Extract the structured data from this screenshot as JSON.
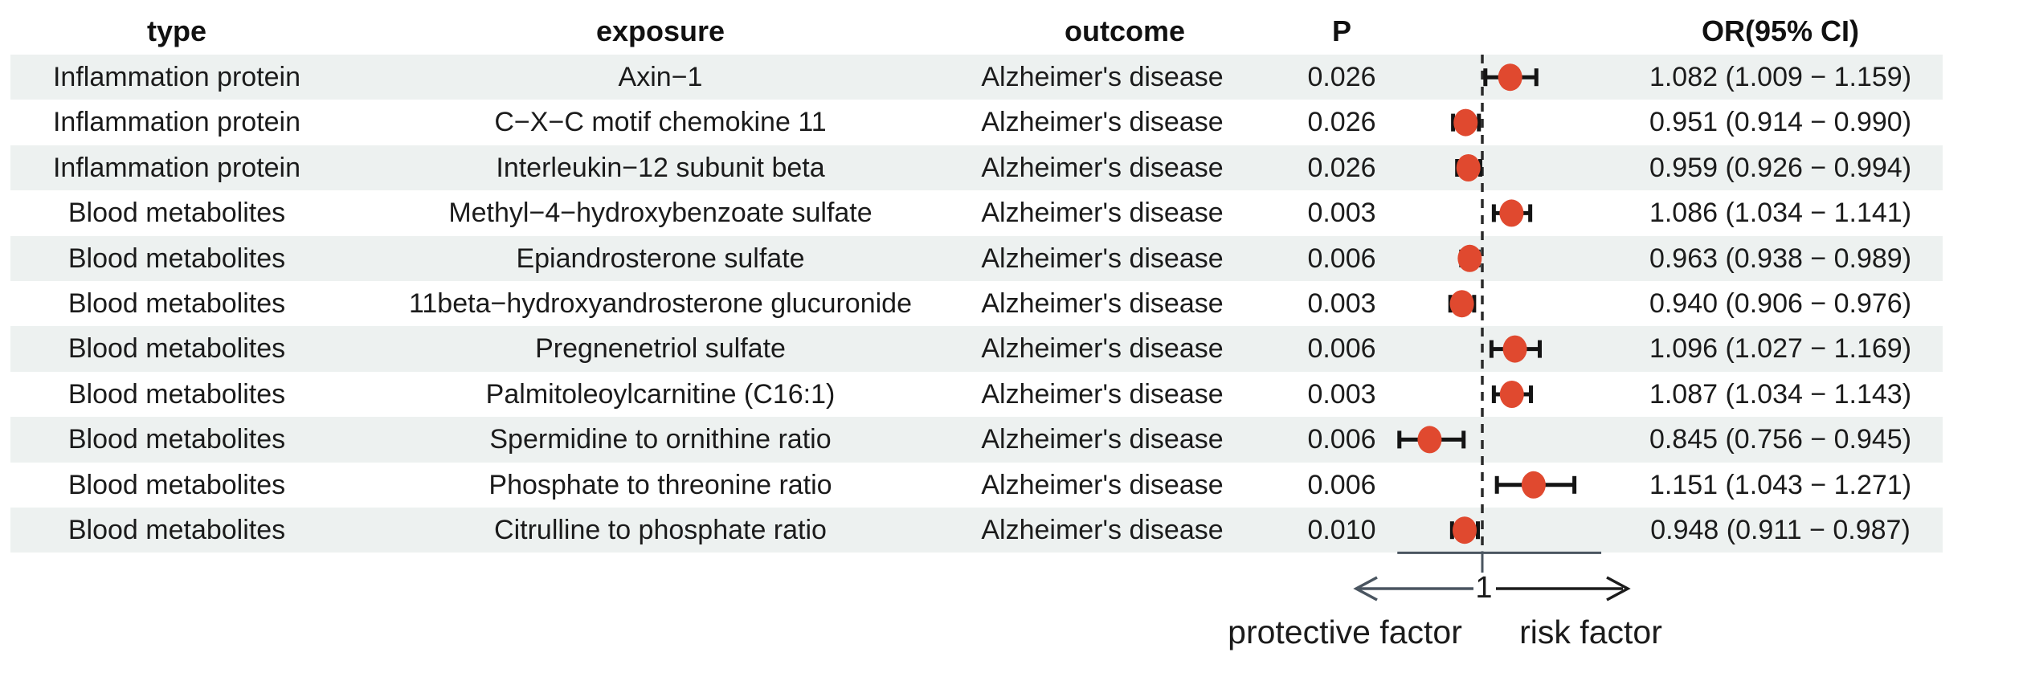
{
  "table": {
    "headers": {
      "type": "type",
      "exposure": "exposure",
      "outcome": "outcome",
      "p": "P",
      "or_ci": "OR(95% CI)"
    },
    "rows": [
      {
        "type": "Inflammation protein",
        "exposure": "Axin−1",
        "outcome": "Alzheimer's disease",
        "p": "0.026",
        "or_ci": "1.082 (1.009 − 1.159)"
      },
      {
        "type": "Inflammation protein",
        "exposure": "C−X−C motif chemokine 11",
        "outcome": "Alzheimer's disease",
        "p": "0.026",
        "or_ci": "0.951 (0.914 − 0.990)"
      },
      {
        "type": "Inflammation protein",
        "exposure": "Interleukin−12 subunit beta",
        "outcome": "Alzheimer's disease",
        "p": "0.026",
        "or_ci": "0.959 (0.926 − 0.994)"
      },
      {
        "type": "Blood metabolites",
        "exposure": "Methyl−4−hydroxybenzoate sulfate",
        "outcome": "Alzheimer's disease",
        "p": "0.003",
        "or_ci": "1.086 (1.034 − 1.141)"
      },
      {
        "type": "Blood metabolites",
        "exposure": "Epiandrosterone sulfate",
        "outcome": "Alzheimer's disease",
        "p": "0.006",
        "or_ci": "0.963 (0.938 − 0.989)"
      },
      {
        "type": "Blood metabolites",
        "exposure": "11beta−hydroxyandrosterone glucuronide",
        "outcome": "Alzheimer's disease",
        "p": "0.003",
        "or_ci": "0.940 (0.906 − 0.976)"
      },
      {
        "type": "Blood metabolites",
        "exposure": "Pregnenetriol sulfate",
        "outcome": "Alzheimer's disease",
        "p": "0.006",
        "or_ci": "1.096 (1.027 − 1.169)"
      },
      {
        "type": "Blood metabolites",
        "exposure": "Palmitoleoylcarnitine (C16:1)",
        "outcome": "Alzheimer's disease",
        "p": "0.003",
        "or_ci": "1.087 (1.034 − 1.143)"
      },
      {
        "type": "Blood metabolites",
        "exposure": "Spermidine to ornithine ratio",
        "outcome": "Alzheimer's disease",
        "p": "0.006",
        "or_ci": "0.845 (0.756 − 0.945)"
      },
      {
        "type": "Blood metabolites",
        "exposure": "Phosphate to threonine ratio",
        "outcome": "Alzheimer's disease",
        "p": "0.006",
        "or_ci": "1.151 (1.043 − 1.271)"
      },
      {
        "type": "Blood metabolites",
        "exposure": "Citrulline to phosphate ratio",
        "outcome": "Alzheimer's disease",
        "p": "0.010",
        "or_ci": "0.948 (0.911 − 0.987)"
      }
    ]
  },
  "chart_data": {
    "type": "scatter",
    "subtype": "forest-plot",
    "categories": [
      "Axin−1",
      "C−X−C motif chemokine 11",
      "Interleukin−12 subunit beta",
      "Methyl−4−hydroxybenzoate sulfate",
      "Epiandrosterone sulfate",
      "11beta−hydroxyandrosterone glucuronide",
      "Pregnenetriol sulfate",
      "Palmitoleoylcarnitine (C16:1)",
      "Spermidine to ornithine ratio",
      "Phosphate to threonine ratio",
      "Citrulline to phosphate ratio"
    ],
    "points": [
      {
        "or": 1.082,
        "lo": 1.009,
        "hi": 1.159
      },
      {
        "or": 0.951,
        "lo": 0.914,
        "hi": 0.99
      },
      {
        "or": 0.959,
        "lo": 0.926,
        "hi": 0.994
      },
      {
        "or": 1.086,
        "lo": 1.034,
        "hi": 1.141
      },
      {
        "or": 0.963,
        "lo": 0.938,
        "hi": 0.989
      },
      {
        "or": 0.94,
        "lo": 0.906,
        "hi": 0.976
      },
      {
        "or": 1.096,
        "lo": 1.027,
        "hi": 1.169
      },
      {
        "or": 1.087,
        "lo": 1.034,
        "hi": 1.143
      },
      {
        "or": 0.845,
        "lo": 0.756,
        "hi": 0.945
      },
      {
        "or": 1.151,
        "lo": 1.043,
        "hi": 1.271
      },
      {
        "or": 0.948,
        "lo": 0.911,
        "hi": 0.987
      }
    ],
    "p_values": [
      0.026,
      0.026,
      0.026,
      0.003,
      0.006,
      0.003,
      0.006,
      0.003,
      0.006,
      0.006,
      0.01
    ],
    "ref_line": 1,
    "xlim": [
      0.75,
      1.35
    ],
    "x_tick_label": "1",
    "direction_labels": {
      "left": "protective factor",
      "right": "risk factor"
    },
    "colors": {
      "marker": "#e0492f",
      "whisker": "#141414",
      "ref_line": "#2a2a2a",
      "axis": "#4a5560",
      "arrow_right": "#1c1c1c",
      "stripe": "#edf1f0"
    }
  }
}
